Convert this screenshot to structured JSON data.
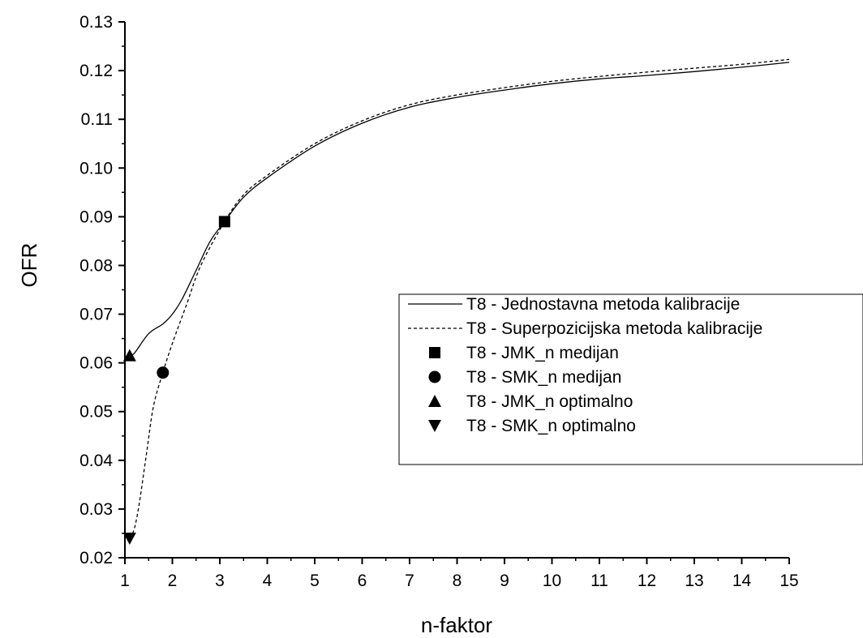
{
  "chart_data": {
    "type": "line",
    "xlabel": "n-faktor",
    "ylabel": "OFR",
    "xlim": [
      1,
      15
    ],
    "ylim": [
      0.02,
      0.13
    ],
    "x_ticks": [
      1,
      2,
      3,
      4,
      5,
      6,
      7,
      8,
      9,
      10,
      11,
      12,
      13,
      14,
      15
    ],
    "x_tick_labels": [
      "1",
      "2",
      "3",
      "4",
      "5",
      "6",
      "7",
      "8",
      "9",
      "10",
      "11",
      "12",
      "13",
      "14",
      "15"
    ],
    "y_ticks": [
      0.02,
      0.03,
      0.04,
      0.05,
      0.06,
      0.07,
      0.08,
      0.09,
      0.1,
      0.11,
      0.12,
      0.13
    ],
    "y_tick_labels": [
      "0.02",
      "0.03",
      "0.04",
      "0.05",
      "0.06",
      "0.07",
      "0.08",
      "0.09",
      "0.10",
      "0.11",
      "0.12",
      "0.13"
    ],
    "grid": false,
    "legend_position": "center-right",
    "series": [
      {
        "name": "T8 - Jednostavna metoda kalibracije",
        "style": "solid",
        "color": "#000000",
        "x": [
          1.05,
          1.2,
          1.5,
          1.8,
          2.0,
          2.2,
          2.5,
          2.8,
          3.1,
          3.5,
          4.0,
          5.0,
          6.0,
          7.0,
          8.0,
          9.0,
          10.0,
          11.0,
          12.0,
          13.0,
          14.0,
          15.0
        ],
        "y": [
          0.061,
          0.062,
          0.066,
          0.068,
          0.07,
          0.073,
          0.079,
          0.085,
          0.089,
          0.094,
          0.098,
          0.1045,
          0.1092,
          0.1125,
          0.1145,
          0.116,
          0.1173,
          0.1183,
          0.119,
          0.1198,
          0.1207,
          0.1217
        ]
      },
      {
        "name": "T8 - Superpozicijska metoda kalibracije",
        "style": "dashed",
        "color": "#000000",
        "x": [
          1.1,
          1.2,
          1.3,
          1.45,
          1.6,
          1.8,
          2.0,
          2.3,
          2.6,
          3.1,
          3.5,
          4.0,
          5.0,
          6.0,
          7.0,
          8.0,
          9.0,
          10.0,
          11.0,
          12.0,
          13.0,
          14.0,
          15.0
        ],
        "y": [
          0.024,
          0.026,
          0.031,
          0.041,
          0.051,
          0.058,
          0.064,
          0.072,
          0.08,
          0.089,
          0.0945,
          0.0985,
          0.105,
          0.1097,
          0.113,
          0.115,
          0.1165,
          0.1178,
          0.1188,
          0.1197,
          0.1205,
          0.1213,
          0.1223
        ]
      }
    ],
    "markers": [
      {
        "name": "T8 - JMK_n medijan",
        "symbol": "square",
        "x": 3.1,
        "y": 0.089
      },
      {
        "name": "T8 - SMK_n medijan",
        "symbol": "circle",
        "x": 1.8,
        "y": 0.058
      },
      {
        "name": "T8 - JMK_n optimalno",
        "symbol": "triangle-up",
        "x": 1.1,
        "y": 0.0615
      },
      {
        "name": "T8 - SMK_n optimalno",
        "symbol": "triangle-down",
        "x": 1.1,
        "y": 0.024
      }
    ]
  }
}
